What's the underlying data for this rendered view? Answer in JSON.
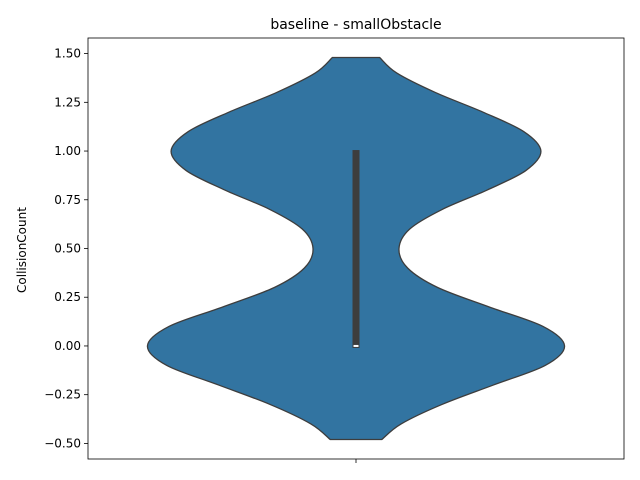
{
  "chart_data": {
    "type": "violin",
    "title": "baseline - smallObstacle",
    "xlabel": "",
    "ylabel": "CollisionCount",
    "ylim": [
      -0.58,
      1.58
    ],
    "yticks": [
      -0.5,
      -0.25,
      0.0,
      0.25,
      0.5,
      0.75,
      1.0,
      1.25,
      1.5
    ],
    "ytick_labels": [
      "−0.50",
      "−0.25",
      "0.00",
      "0.25",
      "0.50",
      "0.75",
      "1.00",
      "1.25",
      "1.50"
    ],
    "categories": [
      ""
    ],
    "color": "#3274a1",
    "edge_color": "#3d3d3d",
    "density": {
      "y": [
        -0.48,
        -0.4,
        -0.3,
        -0.2,
        -0.1,
        0.0,
        0.1,
        0.2,
        0.3,
        0.4,
        0.5,
        0.6,
        0.7,
        0.8,
        0.9,
        1.0,
        1.1,
        1.2,
        1.3,
        1.4,
        1.48
      ],
      "half_width": [
        0.12,
        0.21,
        0.4,
        0.64,
        0.88,
        0.97,
        0.87,
        0.62,
        0.38,
        0.24,
        0.2,
        0.25,
        0.4,
        0.61,
        0.79,
        0.86,
        0.78,
        0.59,
        0.37,
        0.19,
        0.11
      ]
    },
    "box": {
      "q1": 0.0,
      "median": 0.0,
      "q3": 1.0,
      "whisker_low": 0.0,
      "whisker_high": 1.0
    }
  }
}
